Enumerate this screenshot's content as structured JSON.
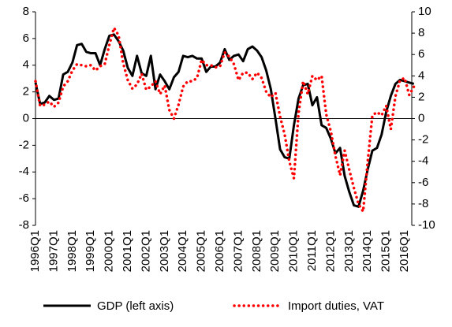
{
  "chart_data": {
    "type": "line",
    "categories": [
      "1996Q1",
      null,
      null,
      null,
      "1997Q1",
      null,
      null,
      null,
      "1998Q1",
      null,
      null,
      null,
      "1999Q1",
      null,
      null,
      null,
      "2000Q1",
      null,
      null,
      null,
      "2001Q1",
      null,
      null,
      null,
      "2002Q1",
      null,
      null,
      null,
      "2003Q1",
      null,
      null,
      null,
      "2004Q1",
      null,
      null,
      null,
      "2005Q1",
      null,
      null,
      null,
      "2006Q1",
      null,
      null,
      null,
      "2007Q1",
      null,
      null,
      null,
      "2008Q1",
      null,
      null,
      null,
      "2009Q1",
      null,
      null,
      null,
      "2010Q1",
      null,
      null,
      null,
      "2011Q1",
      null,
      null,
      null,
      "2012Q1",
      null,
      null,
      null,
      "2013Q1",
      null,
      null,
      null,
      "2014Q1",
      null,
      null,
      null,
      "2015Q1",
      null,
      null,
      null,
      "2016Q1",
      null,
      null
    ],
    "series": [
      {
        "name": "GDP (left axis)",
        "color": "#000000",
        "style": "solid",
        "values": [
          2.7,
          1.1,
          1.2,
          1.7,
          1.4,
          1.5,
          3.3,
          3.5,
          4.2,
          5.5,
          5.6,
          5.0,
          4.9,
          4.9,
          4.0,
          5.2,
          6.2,
          6.3,
          5.8,
          5.1,
          3.8,
          3.2,
          4.7,
          3.4,
          3.2,
          4.7,
          2.2,
          3.3,
          2.8,
          2.2,
          3.1,
          3.5,
          4.7,
          4.6,
          4.7,
          4.5,
          4.5,
          3.5,
          3.9,
          3.9,
          4.2,
          5.2,
          4.4,
          4.7,
          4.8,
          4.3,
          5.2,
          5.4,
          5.1,
          4.6,
          3.6,
          2.2,
          0.0,
          -2.3,
          -2.9,
          -3.0,
          -0.5,
          1.5,
          2.5,
          2.6,
          1.0,
          1.6,
          -0.5,
          -0.7,
          -1.5,
          -2.6,
          -2.2,
          -4.3,
          -5.5,
          -6.5,
          -6.6,
          -5.4,
          -3.8,
          -2.4,
          -2.2,
          -1.2,
          0.5,
          1.7,
          2.6,
          2.9,
          2.8,
          2.7,
          2.6
        ]
      },
      {
        "name": "Import duties, VAT",
        "color": "#ff0000",
        "style": "dotted",
        "axis": "y2",
        "values": [
          3.5,
          1.2,
          1.3,
          1.6,
          1.1,
          1.5,
          3.0,
          3.5,
          4.5,
          5.1,
          5.0,
          4.9,
          5.0,
          4.5,
          4.9,
          5.1,
          6.9,
          8.5,
          7.8,
          5.2,
          3.6,
          2.8,
          3.2,
          4.2,
          2.7,
          3.0,
          3.5,
          2.3,
          3.1,
          0.8,
          0.0,
          1.3,
          3.0,
          3.5,
          3.5,
          3.8,
          5.5,
          5.0,
          5.0,
          4.8,
          4.9,
          6.2,
          5.8,
          5.1,
          3.6,
          4.3,
          4.3,
          3.7,
          4.3,
          3.8,
          2.5,
          2.0,
          2.4,
          0.2,
          -1.5,
          -4.0,
          -5.6,
          0.5,
          3.5,
          2.3,
          4.0,
          3.6,
          4.0,
          0.4,
          -1.2,
          -3.5,
          -5.3,
          -3.0,
          -4.8,
          -6.5,
          -8.0,
          -8.7,
          -4.0,
          0.3,
          0.6,
          0.3,
          1.2,
          -1.0,
          2.1,
          3.6,
          3.8,
          2.2,
          3.0
        ]
      }
    ],
    "ylim": [
      -8,
      8
    ],
    "yticks": [
      -8,
      -6,
      -4,
      -2,
      0,
      2,
      4,
      6,
      8
    ],
    "y2lim": [
      -10,
      10
    ],
    "y2ticks": [
      -10,
      -8,
      -6,
      -4,
      -2,
      0,
      2,
      4,
      6,
      8,
      10
    ],
    "legend": "bottom"
  }
}
